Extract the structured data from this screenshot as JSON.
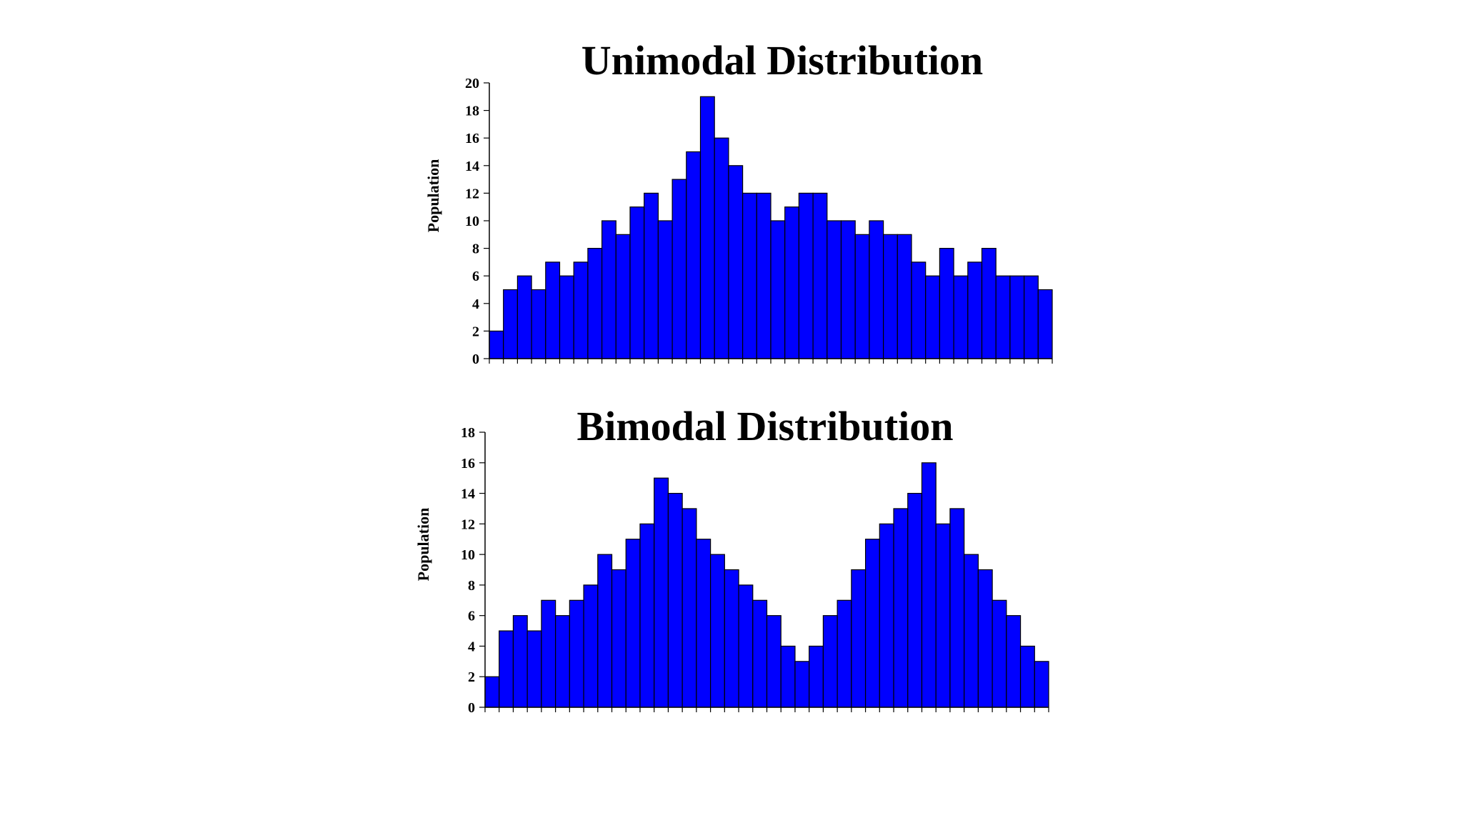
{
  "chart_data": [
    {
      "type": "bar",
      "title": "Unimodal Distribution",
      "xlabel": "",
      "ylabel": "Population",
      "ylim": [
        0,
        20
      ],
      "yticks": [
        0,
        2,
        4,
        6,
        8,
        10,
        12,
        14,
        16,
        18,
        20
      ],
      "values": [
        2,
        5,
        6,
        5,
        7,
        6,
        7,
        8,
        10,
        9,
        11,
        12,
        10,
        13,
        15,
        19,
        16,
        14,
        12,
        12,
        10,
        11,
        12,
        12,
        10,
        10,
        9,
        10,
        9,
        9,
        7,
        6,
        8,
        6,
        7,
        8,
        6,
        6,
        6,
        5
      ],
      "bar_color": "#0000FF",
      "edge_color": "#000000",
      "grid": false
    },
    {
      "type": "bar",
      "title": "Bimodal Distribution",
      "xlabel": "",
      "ylabel": "Population",
      "ylim": [
        0,
        18
      ],
      "yticks": [
        0,
        2,
        4,
        6,
        8,
        10,
        12,
        14,
        16,
        18
      ],
      "values": [
        2,
        5,
        6,
        5,
        7,
        6,
        7,
        8,
        10,
        9,
        11,
        12,
        15,
        14,
        13,
        11,
        10,
        9,
        8,
        7,
        6,
        4,
        3,
        4,
        6,
        7,
        9,
        11,
        12,
        13,
        14,
        16,
        12,
        13,
        10,
        9,
        7,
        6,
        4,
        3
      ],
      "bar_color": "#0000FF",
      "edge_color": "#000000",
      "grid": false
    }
  ]
}
